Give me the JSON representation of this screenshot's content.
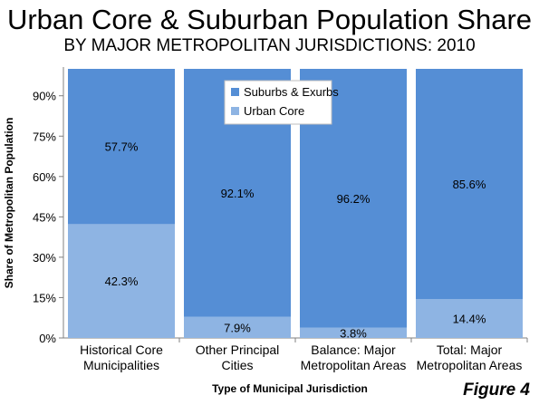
{
  "chart_data": {
    "type": "bar",
    "stacked": true,
    "title": "Urban Core & Suburban Population Share",
    "subtitle": "BY MAJOR METROPOLITAN JURISDICTIONS: 2010",
    "xlabel": "Type of Municipal Jurisdiction",
    "ylabel": "Share of Metropolitan Population",
    "ylim": [
      0,
      100
    ],
    "yticks": [
      "0%",
      "15%",
      "30%",
      "45%",
      "60%",
      "75%",
      "90%"
    ],
    "categories": [
      [
        "Historical Core",
        "Municipalities"
      ],
      [
        "Other Principal",
        "Cities"
      ],
      [
        "Balance: Major",
        "Metropolitan Areas"
      ],
      [
        "Total: Major",
        "Metropolitan Areas"
      ]
    ],
    "series": [
      {
        "name": "Urban Core",
        "values": [
          42.3,
          7.9,
          3.8,
          14.4
        ],
        "labels": [
          "42.3%",
          "7.9%",
          "3.8%",
          "14.4%"
        ],
        "color": "#8EB4E3"
      },
      {
        "name": "Suburbs & Exurbs",
        "values": [
          57.7,
          92.1,
          96.2,
          85.6
        ],
        "labels": [
          "57.7%",
          "92.1%",
          "96.2%",
          "85.6%"
        ],
        "color": "#558ED5"
      }
    ],
    "legend": {
      "position": "top-center",
      "items": [
        "Suburbs & Exurbs",
        "Urban Core"
      ]
    },
    "grid": false
  },
  "figure_label": "Figure 4"
}
